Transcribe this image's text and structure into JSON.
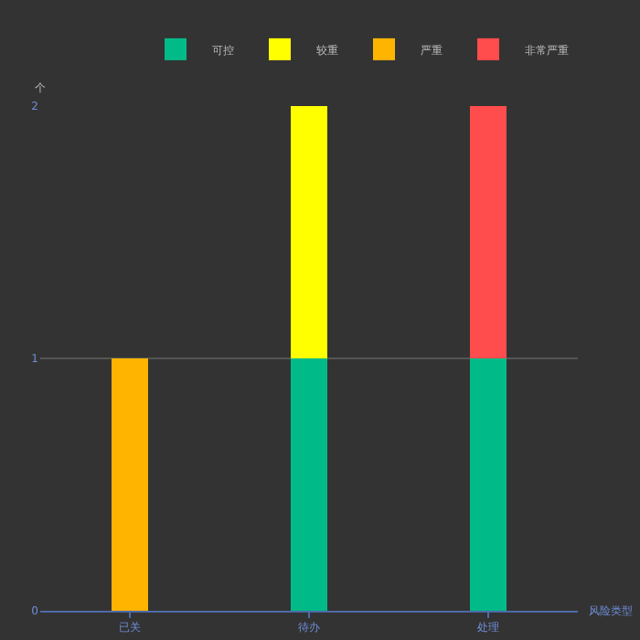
{
  "chart_data": {
    "type": "bar",
    "ylabel": "个",
    "xlabel": "风险类型",
    "categories": [
      "已关",
      "待办",
      "处理"
    ],
    "stacked": true,
    "ylim": [
      0,
      2
    ],
    "yticks": [
      0,
      1,
      2
    ],
    "grid": "y",
    "legend": "top right",
    "series": [
      {
        "name": "可控",
        "color": "#00bb88",
        "values": [
          null,
          1,
          1
        ]
      },
      {
        "name": "较重",
        "color": "#ffff00",
        "values": [
          null,
          1,
          null
        ]
      },
      {
        "name": "严重",
        "color": "#ffb400",
        "values": [
          1,
          null,
          null
        ]
      },
      {
        "name": "非常严重",
        "color": "#ff4c4c",
        "values": [
          null,
          null,
          1
        ]
      }
    ]
  }
}
